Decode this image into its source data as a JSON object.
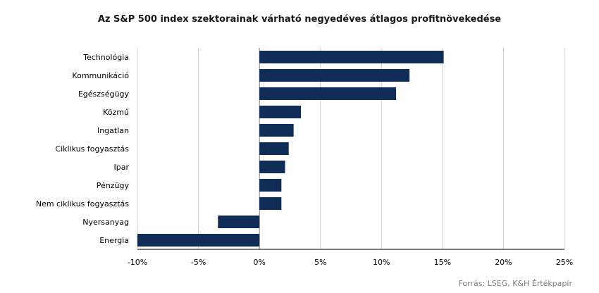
{
  "chart_data": {
    "type": "bar",
    "orientation": "horizontal",
    "title": "Az S&P 500 index szektorainak várható negyedéves átlagos profitnövekedése",
    "categories": [
      "Technológia",
      "Kommunikáció",
      "Egészségügy",
      "Közmű",
      "Ingatlan",
      "Ciklikus fogyasztás",
      "Ipar",
      "Pénzügy",
      "Nem ciklikus fogyasztás",
      "Nyersanyag",
      "Energia"
    ],
    "values": [
      15.1,
      12.3,
      11.2,
      3.4,
      2.8,
      2.4,
      2.1,
      1.8,
      1.8,
      -3.4,
      -10.0
    ],
    "xlim": [
      -10,
      25
    ],
    "x_ticks": [
      -10,
      -5,
      0,
      5,
      10,
      15,
      20,
      25
    ],
    "x_tick_labels": [
      "-10%",
      "-5%",
      "0%",
      "5%",
      "10%",
      "15%",
      "20%",
      "25%"
    ],
    "grid": "vertical",
    "bar_color": "#0f2d56"
  },
  "source": "Forrás: LSEG, K&H Értékpapír"
}
